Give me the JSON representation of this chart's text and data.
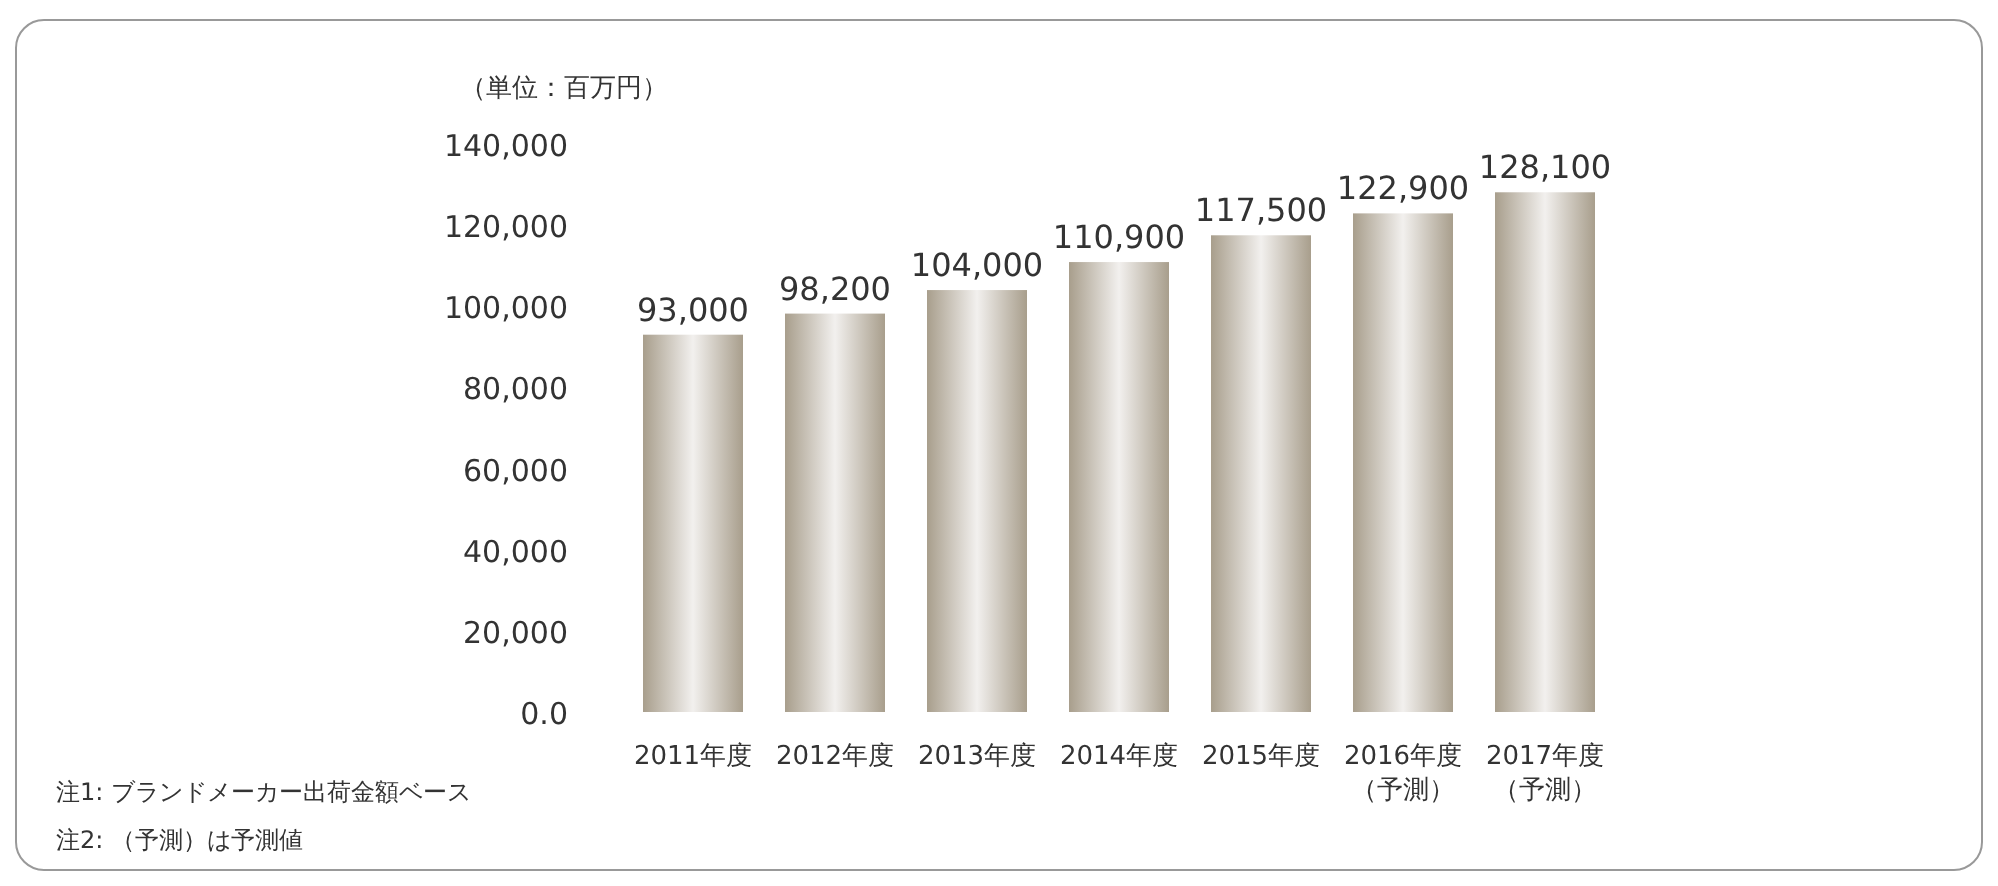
{
  "chart_data": {
    "type": "bar",
    "ylabel": "（単位：百万円）",
    "categories": [
      "2011年度",
      "2012年度",
      "2013年度",
      "2014年度",
      "2015年度",
      "2016年度（予測）",
      "2017年度（予測）"
    ],
    "values": [
      93000,
      98200,
      104000,
      110900,
      117500,
      122900,
      128100
    ],
    "color": "#a89e8c",
    "ylim": [
      0,
      140000
    ],
    "yticks": [
      {
        "value": 0,
        "label": "0.0"
      },
      {
        "value": 20000,
        "label": "20,000"
      },
      {
        "value": 40000,
        "label": "40,000"
      },
      {
        "value": 60000,
        "label": "60,000"
      },
      {
        "value": 80000,
        "label": "80,000"
      },
      {
        "value": 100000,
        "label": "100,000"
      },
      {
        "value": 120000,
        "label": "120,000"
      },
      {
        "value": 140000,
        "label": "140,000"
      }
    ],
    "value_labels": [
      "93,000",
      "98,200",
      "104,000",
      "110,900",
      "117,500",
      "122,900",
      "128,100"
    ],
    "annotations": [
      "注1:  ブランドメーカー出荷金額ベース",
      "注2:  （予測）は予測値"
    ]
  }
}
